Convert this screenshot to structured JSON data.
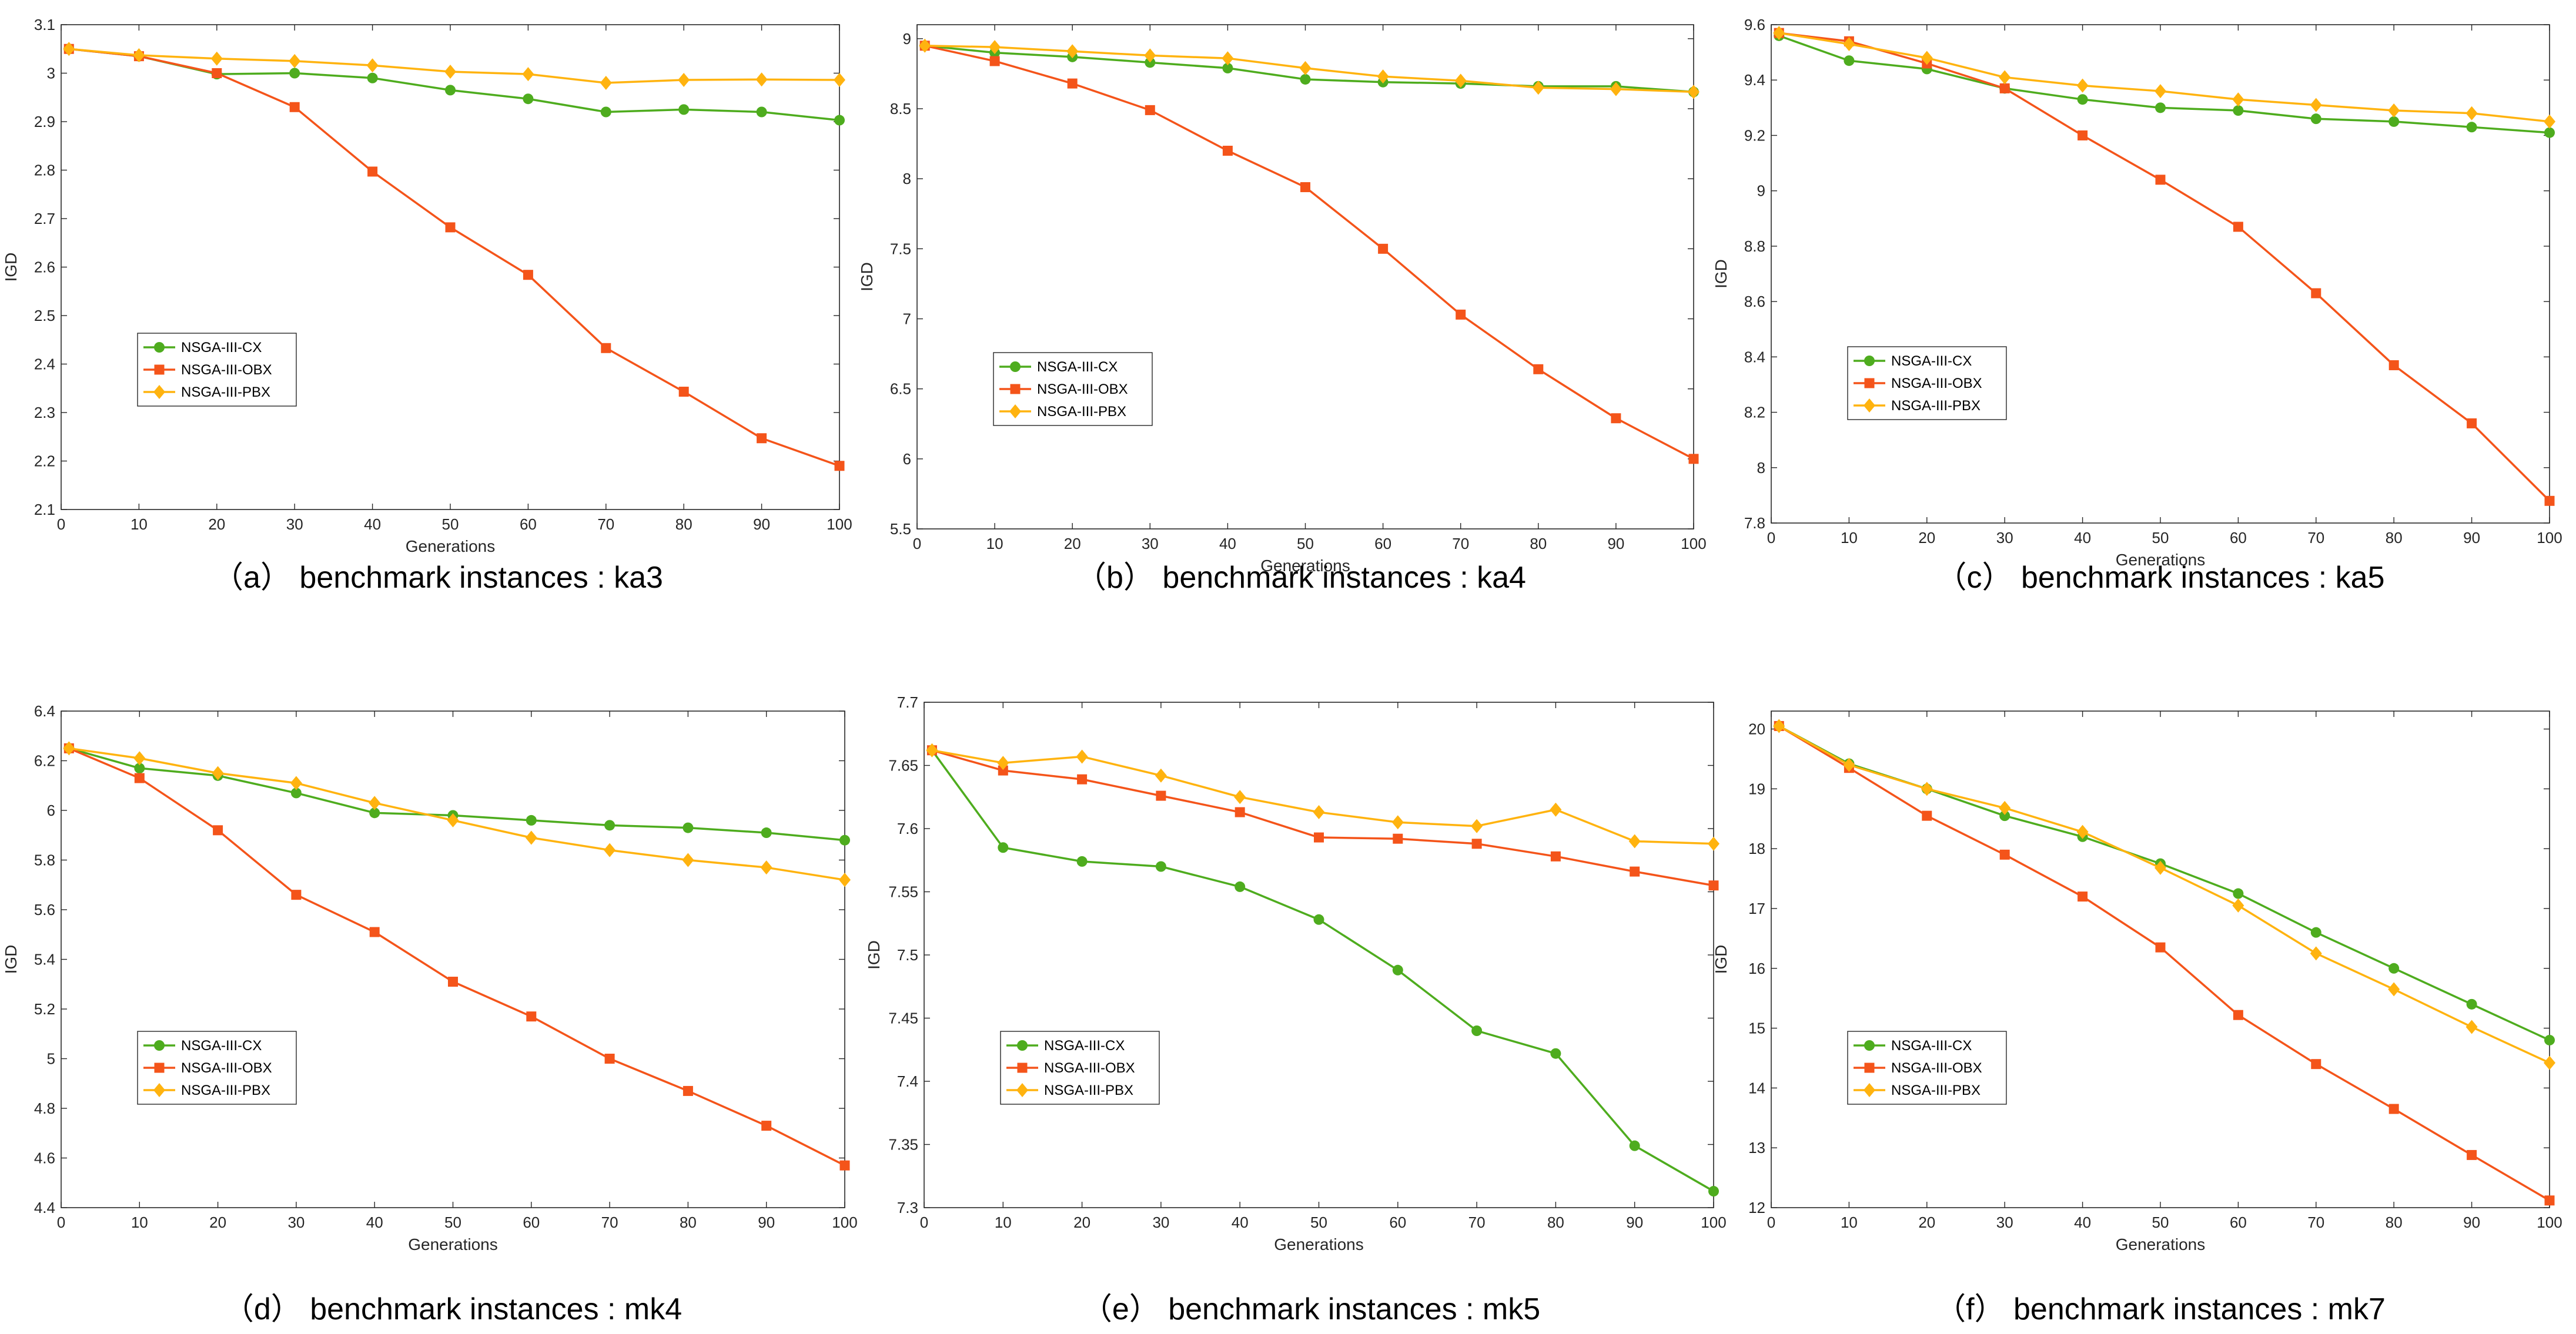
{
  "figure": {
    "series_colors": {
      "NSGA-III-CX": "#4eac1e",
      "NSGA-III-OBX": "#f4541a",
      "NSGA-III-PBX": "#ffb30f"
    },
    "series_markers": {
      "NSGA-III-CX": "circle",
      "NSGA-III-OBX": "square",
      "NSGA-III-PBX": "diamond"
    }
  },
  "chart_data": [
    {
      "id": "a",
      "type": "line",
      "caption": "（a） benchmark instances : ka3",
      "xlabel": "Generations",
      "ylabel": "IGD",
      "x": [
        1,
        10,
        20,
        30,
        40,
        50,
        60,
        70,
        80,
        90,
        100
      ],
      "xlim": [
        0,
        100
      ],
      "xticks": [
        "0",
        "10",
        "20",
        "30",
        "40",
        "50",
        "60",
        "70",
        "80",
        "90",
        "100"
      ],
      "ylim": [
        2.1,
        3.1
      ],
      "yticks": [
        "2.1",
        "2.2",
        "2.3",
        "2.4",
        "2.5",
        "2.6",
        "2.7",
        "2.8",
        "2.9",
        "3",
        "3.1"
      ],
      "legend": {
        "position": "lower-left",
        "entries": [
          "NSGA-III-CX",
          "NSGA-III-OBX",
          "NSGA-III-PBX"
        ]
      },
      "series": [
        {
          "name": "NSGA-III-CX",
          "values": [
            3.05,
            3.035,
            2.998,
            3.0,
            2.99,
            2.965,
            2.947,
            2.92,
            2.925,
            2.92,
            2.903
          ]
        },
        {
          "name": "NSGA-III-OBX",
          "values": [
            3.05,
            3.035,
            3.0,
            2.93,
            2.797,
            2.682,
            2.584,
            2.433,
            2.343,
            2.247,
            2.19
          ]
        },
        {
          "name": "NSGA-III-PBX",
          "values": [
            3.05,
            3.037,
            3.03,
            3.025,
            3.016,
            3.003,
            2.998,
            2.98,
            2.986,
            2.987,
            2.986
          ]
        }
      ]
    },
    {
      "id": "b",
      "type": "line",
      "caption": "（b） benchmark instances : ka4",
      "xlabel": "Generations",
      "ylabel": "IGD",
      "x": [
        1,
        10,
        20,
        30,
        40,
        50,
        60,
        70,
        80,
        90,
        100
      ],
      "xlim": [
        0,
        100
      ],
      "xticks": [
        "0",
        "10",
        "20",
        "30",
        "40",
        "50",
        "60",
        "70",
        "80",
        "90",
        "100"
      ],
      "ylim": [
        5.5,
        9.1
      ],
      "yticks": [
        "5.5",
        "6",
        "6.5",
        "7",
        "7.5",
        "8",
        "8.5",
        "9"
      ],
      "legend": {
        "position": "lower-left",
        "entries": [
          "NSGA-III-CX",
          "NSGA-III-OBX",
          "NSGA-III-PBX"
        ]
      },
      "series": [
        {
          "name": "NSGA-III-CX",
          "values": [
            8.95,
            8.9,
            8.87,
            8.83,
            8.79,
            8.71,
            8.69,
            8.68,
            8.66,
            8.66,
            8.62
          ]
        },
        {
          "name": "NSGA-III-OBX",
          "values": [
            8.95,
            8.84,
            8.68,
            8.49,
            8.2,
            7.94,
            7.5,
            7.03,
            6.64,
            6.29,
            6.0
          ]
        },
        {
          "name": "NSGA-III-PBX",
          "values": [
            8.95,
            8.94,
            8.91,
            8.88,
            8.86,
            8.79,
            8.73,
            8.7,
            8.65,
            8.64,
            8.62
          ]
        }
      ]
    },
    {
      "id": "c",
      "type": "line",
      "caption": "（c） benchmark instances : ka5",
      "xlabel": "Generations",
      "ylabel": "IGD",
      "x": [
        1,
        10,
        20,
        30,
        40,
        50,
        60,
        70,
        80,
        90,
        100
      ],
      "xlim": [
        0,
        100
      ],
      "xticks": [
        "0",
        "10",
        "20",
        "30",
        "40",
        "50",
        "60",
        "70",
        "80",
        "90",
        "100"
      ],
      "ylim": [
        7.8,
        9.6
      ],
      "yticks": [
        "7.8",
        "8",
        "8.2",
        "8.4",
        "8.6",
        "8.8",
        "9",
        "9.2",
        "9.4",
        "9.6"
      ],
      "legend": {
        "position": "lower-left",
        "entries": [
          "NSGA-III-CX",
          "NSGA-III-OBX",
          "NSGA-III-PBX"
        ]
      },
      "series": [
        {
          "name": "NSGA-III-CX",
          "values": [
            9.56,
            9.47,
            9.44,
            9.37,
            9.33,
            9.3,
            9.29,
            9.26,
            9.25,
            9.23,
            9.21
          ]
        },
        {
          "name": "NSGA-III-OBX",
          "values": [
            9.57,
            9.54,
            9.46,
            9.37,
            9.2,
            9.04,
            8.87,
            8.63,
            8.37,
            8.16,
            7.88
          ]
        },
        {
          "name": "NSGA-III-PBX",
          "values": [
            9.57,
            9.53,
            9.48,
            9.41,
            9.38,
            9.36,
            9.33,
            9.31,
            9.29,
            9.28,
            9.25
          ]
        }
      ]
    },
    {
      "id": "d",
      "type": "line",
      "caption": "（d） benchmark instances : mk4",
      "xlabel": "Generations",
      "ylabel": "IGD",
      "x": [
        1,
        10,
        20,
        30,
        40,
        50,
        60,
        70,
        80,
        90,
        100
      ],
      "xlim": [
        0,
        100
      ],
      "xticks": [
        "0",
        "10",
        "20",
        "30",
        "40",
        "50",
        "60",
        "70",
        "80",
        "90",
        "100"
      ],
      "ylim": [
        4.4,
        6.4
      ],
      "yticks": [
        "4.4",
        "4.6",
        "4.8",
        "5",
        "5.2",
        "5.4",
        "5.6",
        "5.8",
        "6",
        "6.2",
        "6.4"
      ],
      "legend": {
        "position": "lower-left",
        "entries": [
          "NSGA-III-CX",
          "NSGA-III-OBX",
          "NSGA-III-PBX"
        ]
      },
      "series": [
        {
          "name": "NSGA-III-CX",
          "values": [
            6.25,
            6.17,
            6.14,
            6.07,
            5.99,
            5.98,
            5.96,
            5.94,
            5.93,
            5.91,
            5.88
          ]
        },
        {
          "name": "NSGA-III-OBX",
          "values": [
            6.25,
            6.13,
            5.92,
            5.66,
            5.51,
            5.31,
            5.17,
            5.0,
            4.87,
            4.73,
            4.57
          ]
        },
        {
          "name": "NSGA-III-PBX",
          "values": [
            6.25,
            6.21,
            6.15,
            6.11,
            6.03,
            5.96,
            5.89,
            5.84,
            5.8,
            5.77,
            5.72
          ]
        }
      ]
    },
    {
      "id": "e",
      "type": "line",
      "caption": "（e） benchmark instances : mk5",
      "xlabel": "Generations",
      "ylabel": "IGD",
      "x": [
        1,
        10,
        20,
        30,
        40,
        50,
        60,
        70,
        80,
        90,
        100
      ],
      "xlim": [
        0,
        100
      ],
      "xticks": [
        "0",
        "10",
        "20",
        "30",
        "40",
        "50",
        "60",
        "70",
        "80",
        "90",
        "100"
      ],
      "ylim": [
        7.3,
        7.7
      ],
      "yticks": [
        "7.3",
        "7.35",
        "7.4",
        "7.45",
        "7.5",
        "7.55",
        "7.6",
        "7.65",
        "7.7"
      ],
      "legend": {
        "position": "lower-left",
        "entries": [
          "NSGA-III-CX",
          "NSGA-III-OBX",
          "NSGA-III-PBX"
        ]
      },
      "series": [
        {
          "name": "NSGA-III-CX",
          "values": [
            7.662,
            7.585,
            7.574,
            7.57,
            7.554,
            7.528,
            7.488,
            7.44,
            7.422,
            7.349,
            7.313
          ]
        },
        {
          "name": "NSGA-III-OBX",
          "values": [
            7.662,
            7.646,
            7.639,
            7.626,
            7.613,
            7.593,
            7.592,
            7.588,
            7.578,
            7.566,
            7.555
          ]
        },
        {
          "name": "NSGA-III-PBX",
          "values": [
            7.662,
            7.652,
            7.657,
            7.642,
            7.625,
            7.613,
            7.605,
            7.602,
            7.615,
            7.59,
            7.588
          ]
        }
      ]
    },
    {
      "id": "f",
      "type": "line",
      "caption": "（f） benchmark instances : mk7",
      "xlabel": "Generations",
      "ylabel": "IGD",
      "x": [
        1,
        10,
        20,
        30,
        40,
        50,
        60,
        70,
        80,
        90,
        100
      ],
      "xlim": [
        0,
        100
      ],
      "xticks": [
        "0",
        "10",
        "20",
        "30",
        "40",
        "50",
        "60",
        "70",
        "80",
        "90",
        "100"
      ],
      "ylim": [
        12,
        20.3
      ],
      "yticks": [
        "12",
        "13",
        "14",
        "15",
        "16",
        "17",
        "18",
        "19",
        "20"
      ],
      "legend": {
        "position": "lower-left",
        "entries": [
          "NSGA-III-CX",
          "NSGA-III-OBX",
          "NSGA-III-PBX"
        ]
      },
      "series": [
        {
          "name": "NSGA-III-CX",
          "values": [
            20.05,
            19.42,
            19.0,
            18.55,
            18.2,
            17.75,
            17.25,
            16.6,
            16.0,
            15.4,
            14.8
          ]
        },
        {
          "name": "NSGA-III-OBX",
          "values": [
            20.05,
            19.35,
            18.55,
            17.9,
            17.2,
            16.35,
            15.22,
            14.4,
            13.65,
            12.88,
            12.12
          ]
        },
        {
          "name": "NSGA-III-PBX",
          "values": [
            20.05,
            19.4,
            19.0,
            18.68,
            18.28,
            17.68,
            17.05,
            16.25,
            15.65,
            15.02,
            14.42
          ]
        }
      ]
    }
  ]
}
